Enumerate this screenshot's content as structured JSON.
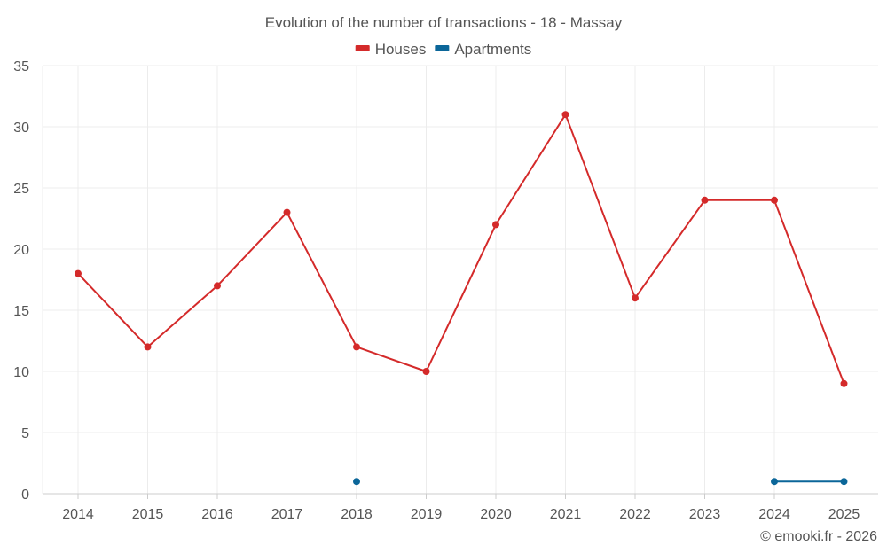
{
  "chart_data": {
    "type": "line",
    "title": "Evolution of the number of transactions - 18 - Massay",
    "x": [
      "2014",
      "2015",
      "2016",
      "2017",
      "2018",
      "2019",
      "2020",
      "2021",
      "2022",
      "2023",
      "2024",
      "2025"
    ],
    "series": [
      {
        "name": "Houses",
        "color": "#d42a2a",
        "values": [
          18,
          12,
          17,
          23,
          12,
          10,
          22,
          31,
          16,
          24,
          24,
          9
        ]
      },
      {
        "name": "Apartments",
        "color": "#0b6699",
        "values": [
          null,
          null,
          null,
          null,
          1,
          null,
          null,
          null,
          null,
          null,
          1,
          1
        ]
      }
    ],
    "ylim": [
      0,
      35
    ],
    "yticks": [
      "0",
      "5",
      "10",
      "15",
      "20",
      "25",
      "30",
      "35"
    ],
    "xlabel": "",
    "ylabel": "",
    "grid": true,
    "legend_position": "top-center"
  },
  "credit": "© emooki.fr - 2026"
}
